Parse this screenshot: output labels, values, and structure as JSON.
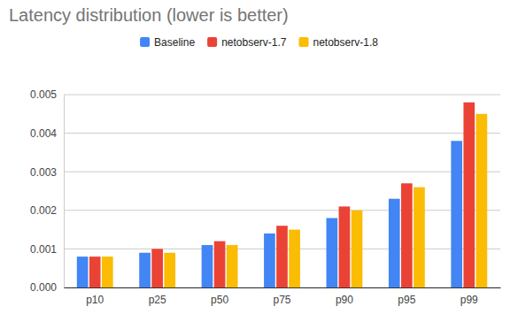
{
  "chart_data": {
    "type": "bar",
    "title": "Latency distribution (lower is better)",
    "categories": [
      "p10",
      "p25",
      "p50",
      "p75",
      "p90",
      "p95",
      "p99"
    ],
    "series": [
      {
        "name": "Baseline",
        "color": "#4285f4",
        "values": [
          0.0008,
          0.0009,
          0.0011,
          0.0014,
          0.0018,
          0.0023,
          0.0038
        ]
      },
      {
        "name": "netobserv-1.7",
        "color": "#ea4335",
        "values": [
          0.0008,
          0.001,
          0.0012,
          0.0016,
          0.0021,
          0.0027,
          0.0048
        ]
      },
      {
        "name": "netobserv-1.8",
        "color": "#fbbc04",
        "values": [
          0.0008,
          0.0009,
          0.0011,
          0.0015,
          0.002,
          0.0026,
          0.0045
        ]
      }
    ],
    "ylim": [
      0,
      0.005
    ],
    "yticks": [
      {
        "value": 0,
        "label": "0.000"
      },
      {
        "value": 0.001,
        "label": "0.001"
      },
      {
        "value": 0.002,
        "label": "0.002"
      },
      {
        "value": 0.003,
        "label": "0.003"
      },
      {
        "value": 0.004,
        "label": "0.004"
      },
      {
        "value": 0.005,
        "label": "0.005"
      }
    ],
    "grid": true,
    "legend": "top"
  }
}
